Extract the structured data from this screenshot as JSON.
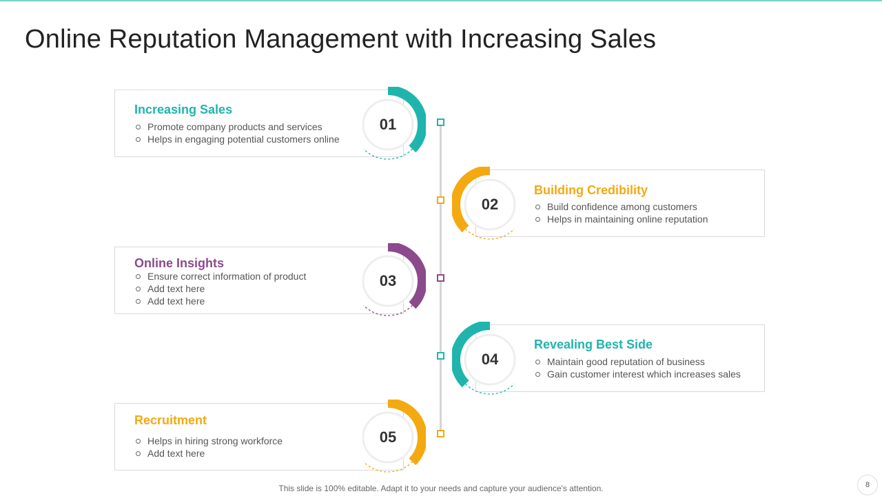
{
  "title": "Online Reputation Management with Increasing Sales",
  "colors": {
    "teal": "#1fb5ad",
    "amber": "#f4a911",
    "purple": "#8b4a8c"
  },
  "steps": [
    {
      "number": "01",
      "title": "Increasing Sales",
      "color": "#1fb5ad",
      "side": "left",
      "bullets": [
        "Promote company products and services",
        "Helps in engaging potential customers online"
      ]
    },
    {
      "number": "02",
      "title": "Building Credibility",
      "color": "#f4a911",
      "side": "right",
      "bullets": [
        "Build confidence among customers",
        "Helps in maintaining online reputation"
      ]
    },
    {
      "number": "03",
      "title": "Online Insights",
      "color": "#8b4a8c",
      "side": "left",
      "bullets": [
        "Ensure correct information of product",
        "Add text here",
        "Add text here"
      ]
    },
    {
      "number": "04",
      "title": "Revealing Best Side",
      "color": "#1fb5ad",
      "side": "right",
      "bullets": [
        "Maintain good reputation of business",
        "Gain customer interest which increases sales"
      ]
    },
    {
      "number": "05",
      "title": "Recruitment",
      "color": "#f4a911",
      "side": "left",
      "bullets": [
        "Helps in hiring strong workforce",
        "Add text here"
      ]
    }
  ],
  "footer": "This slide is 100% editable. Adapt it to your needs and capture your audience's attention.",
  "page_number": "8"
}
